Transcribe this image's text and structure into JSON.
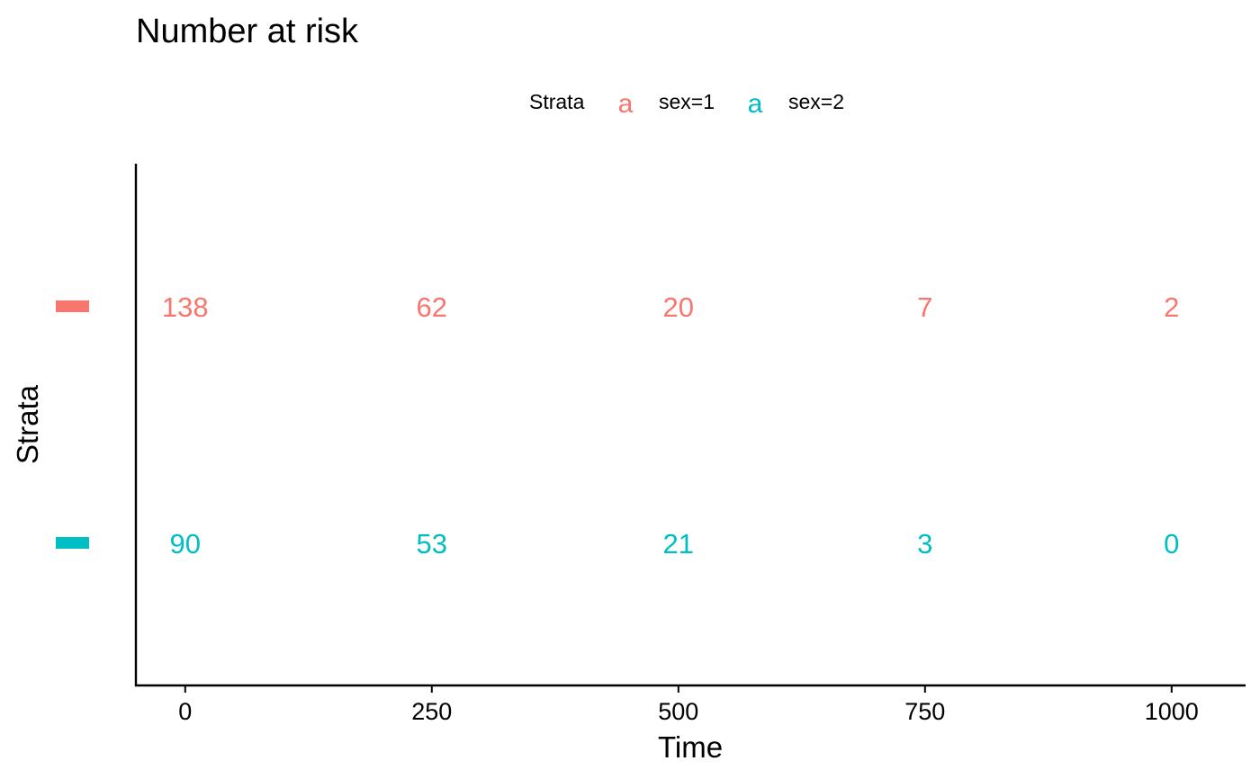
{
  "chart_data": {
    "type": "table",
    "title": "Number at risk",
    "xlabel": "Time",
    "ylabel": "Strata",
    "x_ticks": [
      0,
      250,
      500,
      750,
      1000
    ],
    "xlim": [
      -50,
      1075
    ],
    "legend": {
      "title": "Strata",
      "placement": "top",
      "key_glyph": "a",
      "entries": [
        "sex=1",
        "sex=2"
      ]
    },
    "series": [
      {
        "name": "sex=1",
        "color": "#F8766D",
        "values": [
          138,
          62,
          20,
          7,
          2
        ]
      },
      {
        "name": "sex=2",
        "color": "#00BFC4",
        "values": [
          90,
          53,
          21,
          3,
          0
        ]
      }
    ],
    "grid": false
  }
}
